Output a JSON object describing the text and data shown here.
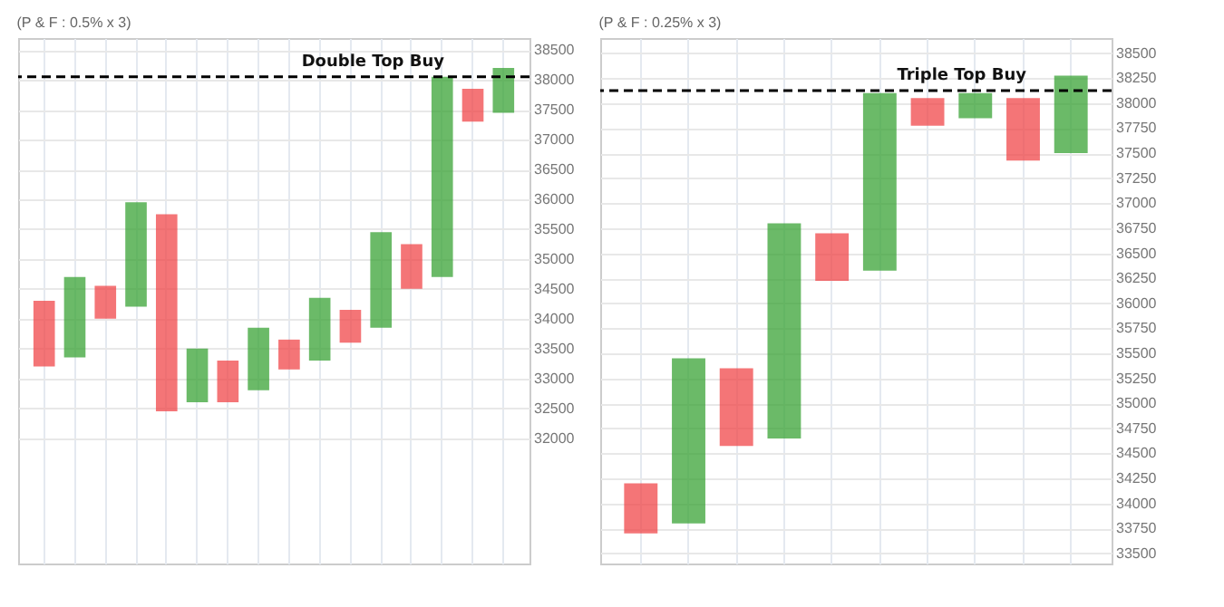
{
  "chart_data": [
    {
      "type": "bar",
      "title": "(P & F : 0.5% x 3)",
      "categories": [
        null,
        null,
        null,
        null,
        null,
        null,
        null,
        null,
        null,
        null,
        null,
        null,
        null,
        null,
        null,
        null
      ],
      "base": [
        33200,
        33350,
        34000,
        34200,
        32450,
        32600,
        32600,
        32800,
        33150,
        33300,
        33600,
        33850,
        34500,
        34700,
        37300,
        37450
      ],
      "values": [
        1100,
        1350,
        550,
        1750,
        3300,
        900,
        700,
        1050,
        500,
        1050,
        550,
        1600,
        750,
        3350,
        550,
        750
      ],
      "colors": [
        "#f0474a",
        "#3aa335",
        "#f0474a",
        "#3aa335",
        "#f0474a",
        "#3aa335",
        "#f0474a",
        "#3aa335",
        "#f0474a",
        "#3aa335",
        "#f0474a",
        "#3aa335",
        "#f0474a",
        "#3aa335",
        "#f0474a",
        "#3aa335"
      ],
      "ylim": [
        29900,
        38700
      ],
      "yticks": [
        32000,
        32500,
        33000,
        33500,
        34000,
        34500,
        35000,
        35500,
        36000,
        36500,
        37000,
        37500,
        38000,
        38500
      ],
      "ref_lines": [
        {
          "axis": "y",
          "value": 38050,
          "label": "Double Top Buy",
          "line_style": "dashed",
          "color": "#000000"
        }
      ],
      "grid": true,
      "tick_labels": "y"
    },
    {
      "type": "bar",
      "title": "(P & F : 0.25% x 3)",
      "categories": [
        null,
        null,
        null,
        null,
        null,
        null,
        null,
        null,
        null,
        null
      ],
      "base": [
        33700,
        33800,
        34575,
        34650,
        36225,
        36325,
        37775,
        37850,
        37425,
        37500
      ],
      "values": [
        500,
        1650,
        775,
        2150,
        475,
        1775,
        275,
        250,
        625,
        775
      ],
      "colors": [
        "#f0474a",
        "#3aa335",
        "#f0474a",
        "#3aa335",
        "#f0474a",
        "#3aa335",
        "#f0474a",
        "#3aa335",
        "#f0474a",
        "#3aa335"
      ],
      "ylim": [
        33400,
        38650
      ],
      "yticks": [
        33500,
        33750,
        34000,
        34250,
        34500,
        34750,
        35000,
        35250,
        35500,
        35750,
        36000,
        36250,
        36500,
        36750,
        37000,
        37250,
        37500,
        37750,
        38000,
        38250,
        38500
      ],
      "ref_lines": [
        {
          "axis": "y",
          "value": 38125,
          "label": "Triple Top Buy",
          "line_style": "dashed",
          "color": "#000000"
        }
      ],
      "grid": true,
      "tick_labels": "y"
    }
  ]
}
